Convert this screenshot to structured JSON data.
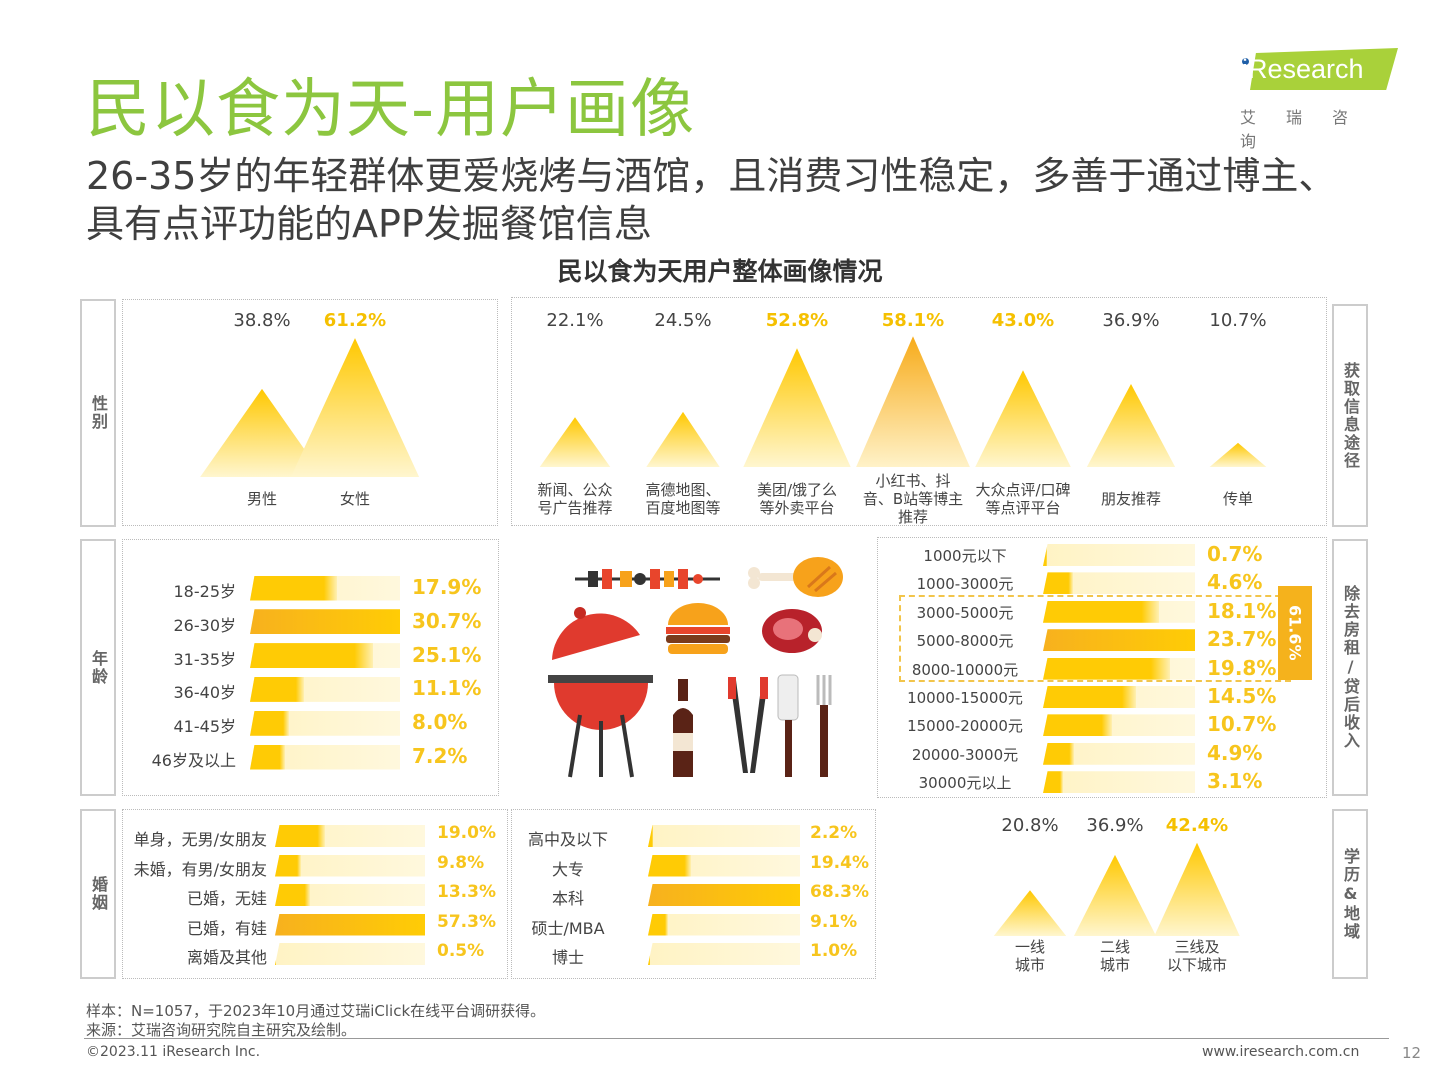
{
  "header": {
    "title": "民以食为天-用户画像",
    "subtitle": "26-35岁的年轻群体更爱烧烤与酒馆，且消费习性稳定，多善于通过博主、具有点评功能的APP发掘餐馆信息",
    "chart_title": "民以食为天用户整体画像情况"
  },
  "logo": {
    "text": "iResearch",
    "cn": "艾瑞咨询"
  },
  "colors": {
    "title_green": "#8cc63f",
    "yellow": "#ffcb05",
    "orange": "#f7b11e",
    "light": "#fff3c4",
    "value_text": "#f7c51d"
  },
  "side_labels": {
    "gender": "性别",
    "age": "年龄",
    "marital": "婚姻",
    "channel": "获取信息途径",
    "income": "除去房租/贷后收入",
    "edu_region": "学历&地域"
  },
  "chart_data": [
    {
      "type": "area",
      "panel": "gender",
      "categories": [
        "男性",
        "女性"
      ],
      "values": [
        38.8,
        61.2
      ],
      "labels": [
        "38.8%",
        "61.2%"
      ],
      "highlight": [
        false,
        true
      ]
    },
    {
      "type": "area",
      "panel": "channel",
      "categories": [
        "新闻、公众号广告推荐",
        "高德地图、百度地图等",
        "美团/饿了么等外卖平台",
        "小红书、抖音、B站等博主推荐",
        "大众点评/口碑等点评平台",
        "朋友推荐",
        "传单"
      ],
      "display_lines": [
        [
          "新闻、公众",
          "号广告推荐"
        ],
        [
          "高德地图、",
          "百度地图等"
        ],
        [
          "美团/饿了么",
          "等外卖平台"
        ],
        [
          "小红书、抖",
          "音、B站等博主",
          "推荐"
        ],
        [
          "大众点评/口碑",
          "等点评平台"
        ],
        [
          "朋友推荐"
        ],
        [
          "传单"
        ]
      ],
      "values": [
        22.1,
        24.5,
        52.8,
        58.1,
        43.0,
        36.9,
        10.7
      ],
      "labels": [
        "22.1%",
        "24.5%",
        "52.8%",
        "58.1%",
        "43.0%",
        "36.9%",
        "10.7%"
      ],
      "highlight": [
        false,
        false,
        true,
        true,
        true,
        false,
        false
      ]
    },
    {
      "type": "bar",
      "panel": "age",
      "categories": [
        "18-25岁",
        "26-30岁",
        "31-35岁",
        "36-40岁",
        "41-45岁",
        "46岁及以上"
      ],
      "values": [
        17.9,
        30.7,
        25.1,
        11.1,
        8.0,
        7.2
      ],
      "labels": [
        "17.9%",
        "30.7%",
        "25.1%",
        "11.1%",
        "8.0%",
        "7.2%"
      ]
    },
    {
      "type": "bar",
      "panel": "income",
      "categories": [
        "1000元以下",
        "1000-3000元",
        "3000-5000元",
        "5000-8000元",
        "8000-10000元",
        "10000-15000元",
        "15000-20000元",
        "20000-3000元",
        "30000元以上"
      ],
      "values": [
        0.7,
        4.6,
        18.1,
        23.7,
        19.8,
        14.5,
        10.7,
        4.9,
        3.1
      ],
      "labels": [
        "0.7%",
        "4.6%",
        "18.1%",
        "23.7%",
        "19.8%",
        "14.5%",
        "10.7%",
        "4.9%",
        "3.1%"
      ],
      "group_total": "61.6%"
    },
    {
      "type": "bar",
      "panel": "marital",
      "categories": [
        "单身，无男/女朋友",
        "未婚，有男/女朋友",
        "已婚，无娃",
        "已婚，有娃",
        "离婚及其他"
      ],
      "values": [
        19.0,
        9.8,
        13.3,
        57.3,
        0.5
      ],
      "labels": [
        "19.0%",
        "9.8%",
        "13.3%",
        "57.3%",
        "0.5%"
      ]
    },
    {
      "type": "bar",
      "panel": "education",
      "categories": [
        "高中及以下",
        "大专",
        "本科",
        "硕士/MBA",
        "博士"
      ],
      "values": [
        2.2,
        19.4,
        68.3,
        9.1,
        1.0
      ],
      "labels": [
        "2.2%",
        "19.4%",
        "68.3%",
        "9.1%",
        "1.0%"
      ]
    },
    {
      "type": "area",
      "panel": "region",
      "categories": [
        "一线城市",
        "二线城市",
        "三线及以下城市"
      ],
      "display_lines": [
        [
          "一线",
          "城市"
        ],
        [
          "二线",
          "城市"
        ],
        [
          "三线及",
          "以下城市"
        ]
      ],
      "values": [
        20.8,
        36.9,
        42.4
      ],
      "labels": [
        "20.8%",
        "36.9%",
        "42.4%"
      ],
      "highlight": [
        false,
        false,
        true
      ]
    }
  ],
  "icons": [
    "skewer-icon",
    "chicken-leg-icon",
    "grill-icon",
    "burger-icon",
    "steak-icon",
    "beer-bottle-icon",
    "tongs-icon",
    "utensils-icon"
  ],
  "footer": {
    "sample": "样本：N=1057，于2023年10月通过艾瑞iClick在线平台调研获得。",
    "source": "来源：艾瑞咨询研究院自主研究及绘制。",
    "copyright": "©2023.11 iResearch Inc.",
    "website": "www.iresearch.com.cn",
    "page": "12"
  }
}
